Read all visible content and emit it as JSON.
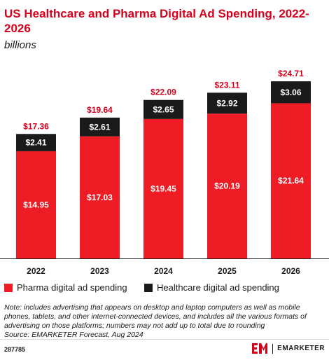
{
  "title": "US Healthcare and Pharma Digital Ad Spending, 2022-2026",
  "subtitle": "billions",
  "colors": {
    "accent": "#d6001c",
    "pharma": "#ee1c24",
    "healthcare": "#1a1a1a"
  },
  "chart_data": {
    "type": "bar",
    "stacked": true,
    "categories": [
      "2022",
      "2023",
      "2024",
      "2025",
      "2026"
    ],
    "series": [
      {
        "name": "Pharma digital ad spending",
        "values": [
          14.95,
          17.03,
          19.45,
          20.19,
          21.64
        ],
        "labels": [
          "$14.95",
          "$17.03",
          "$19.45",
          "$20.19",
          "$21.64"
        ],
        "color": "#ee1c24"
      },
      {
        "name": "Healthcare digital ad spending",
        "values": [
          2.41,
          2.61,
          2.65,
          2.92,
          3.06
        ],
        "labels": [
          "$2.41",
          "$2.61",
          "$2.65",
          "$2.92",
          "$3.06"
        ],
        "color": "#1a1a1a"
      }
    ],
    "totals": [
      17.36,
      19.64,
      22.09,
      23.11,
      24.71
    ],
    "total_labels": [
      "$17.36",
      "$19.64",
      "$22.09",
      "$23.11",
      "$24.71"
    ],
    "ylim": [
      0,
      24.71
    ],
    "grid": false,
    "legend_position": "bottom"
  },
  "note": "Note: includes advertising that appears on desktop and laptop computers as well as mobile phones, tablets, and other internet-connected devices, and includes all the various formats of advertising on those platforms; numbers may not add up to total due to rounding",
  "source": "Source: EMARKETER Forecast, Aug 2024",
  "footer": {
    "chart_id": "287785",
    "brand_name": "EMARKETER"
  }
}
